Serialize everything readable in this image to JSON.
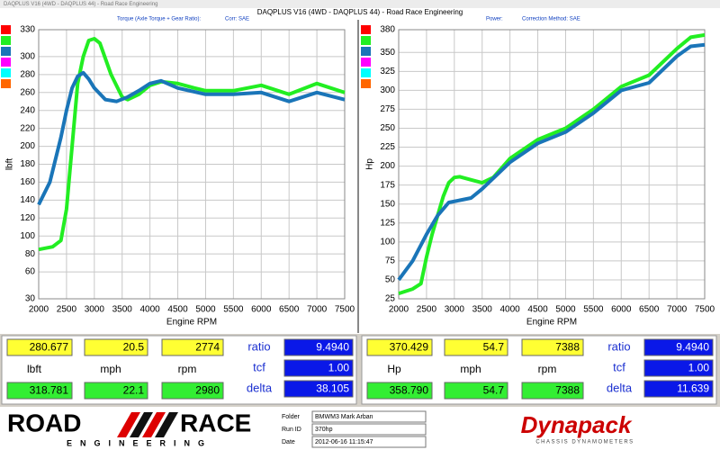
{
  "window_title": "DAQPLUS V16 (4WD - DAQPLUS 44) - Road Race Engineering",
  "header": "DAQPLUS V16 (4WD - DAQPLUS 44) - Road Race Engineering",
  "chart_data": [
    {
      "type": "line",
      "subtitle": "Torque (Axle Torque + Gear Ratio):",
      "correction": "Corr: SAE",
      "x_label": "Engine RPM",
      "y_label": "lbft",
      "xlim": [
        2000,
        7500
      ],
      "xticks": [
        2000,
        2500,
        3000,
        3500,
        4000,
        4500,
        5000,
        5500,
        6000,
        6500,
        7000,
        7500
      ],
      "ylim": [
        30,
        330
      ],
      "yticks": [
        30,
        60,
        80,
        100,
        120,
        140,
        160,
        180,
        200,
        220,
        240,
        260,
        280,
        300,
        330
      ],
      "grid": true,
      "series": [
        {
          "color": "#22ee22",
          "x": [
            2000,
            2250,
            2400,
            2500,
            2600,
            2700,
            2800,
            2900,
            3000,
            3100,
            3300,
            3500,
            3600,
            3800,
            4000,
            4200,
            4500,
            4800,
            5000,
            5500,
            6000,
            6500,
            7000,
            7500
          ],
          "values": [
            85,
            88,
            95,
            130,
            200,
            270,
            300,
            318,
            320,
            315,
            280,
            255,
            252,
            258,
            268,
            272,
            270,
            265,
            262,
            262,
            268,
            258,
            270,
            260
          ]
        },
        {
          "color": "#1a75b8",
          "x": [
            2000,
            2200,
            2400,
            2500,
            2600,
            2700,
            2800,
            2900,
            3000,
            3200,
            3400,
            3600,
            3800,
            4000,
            4200,
            4500,
            5000,
            5500,
            6000,
            6500,
            7000,
            7500
          ],
          "values": [
            135,
            160,
            210,
            240,
            265,
            278,
            282,
            275,
            265,
            252,
            250,
            255,
            262,
            270,
            273,
            265,
            258,
            258,
            260,
            250,
            260,
            252
          ]
        }
      ]
    },
    {
      "type": "line",
      "subtitle": "Power:",
      "correction": "Correction Method: SAE",
      "x_label": "Engine RPM",
      "y_label": "Hp",
      "xlim": [
        2000,
        7500
      ],
      "xticks": [
        2000,
        2500,
        3000,
        3500,
        4000,
        4500,
        5000,
        5500,
        6000,
        6500,
        7000,
        7500
      ],
      "ylim": [
        25,
        380
      ],
      "yticks": [
        25,
        50,
        75,
        100,
        125,
        150,
        175,
        200,
        225,
        250,
        275,
        300,
        325,
        350,
        380
      ],
      "grid": true,
      "series": [
        {
          "color": "#22ee22",
          "x": [
            2000,
            2250,
            2400,
            2500,
            2600,
            2700,
            2800,
            2900,
            3000,
            3100,
            3300,
            3500,
            3700,
            4000,
            4500,
            5000,
            5500,
            6000,
            6500,
            7000,
            7250,
            7500
          ],
          "values": [
            32,
            38,
            45,
            80,
            110,
            135,
            160,
            178,
            185,
            186,
            182,
            178,
            185,
            210,
            235,
            250,
            275,
            305,
            320,
            355,
            370,
            373
          ]
        },
        {
          "color": "#1a75b8",
          "x": [
            2000,
            2250,
            2500,
            2700,
            2900,
            3100,
            3300,
            3500,
            4000,
            4500,
            5000,
            5500,
            6000,
            6500,
            7000,
            7250,
            7500
          ],
          "values": [
            50,
            75,
            110,
            135,
            152,
            155,
            158,
            170,
            205,
            230,
            245,
            270,
            300,
            310,
            345,
            358,
            360
          ]
        }
      ]
    }
  ],
  "readouts": [
    {
      "top": [
        "280.677",
        "20.5",
        "2774"
      ],
      "units": [
        "lbft",
        "mph",
        "rpm"
      ],
      "bottom": [
        "318.781",
        "22.1",
        "2980"
      ],
      "labels": [
        "ratio",
        "tcf",
        "delta"
      ],
      "values": [
        "9.4940",
        "1.00",
        "38.105"
      ]
    },
    {
      "top": [
        "370.429",
        "54.7",
        "7388"
      ],
      "units": [
        "Hp",
        "mph",
        "rpm"
      ],
      "bottom": [
        "358.790",
        "54.7",
        "7388"
      ],
      "labels": [
        "ratio",
        "tcf",
        "delta"
      ],
      "values": [
        "9.4940",
        "1.00",
        "11.639"
      ]
    }
  ],
  "logo": {
    "left": "ROAD",
    "right": "RACE",
    "sub": "ENGINEERING"
  },
  "info": [
    {
      "label": "Folder",
      "value": "BMWM3 Mark Arban"
    },
    {
      "label": "Run ID",
      "value": "370hp"
    },
    {
      "label": "Date",
      "value": "2012-06-16 11:15:47"
    }
  ],
  "brand": {
    "name": "Dynapack",
    "tagline": "CHASSIS DYNAMOMETERS"
  }
}
